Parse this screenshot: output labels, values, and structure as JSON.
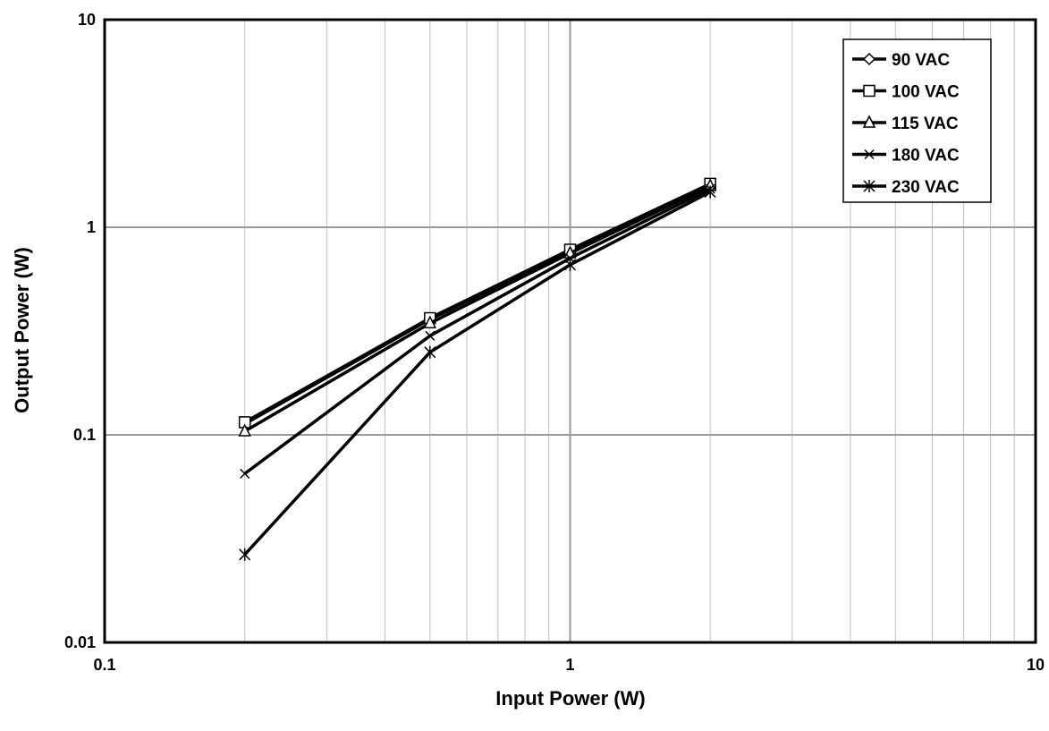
{
  "chart_data": {
    "type": "line",
    "title": "",
    "xlabel": "Input Power (W)",
    "ylabel": "Output Power (W)",
    "x_scale": "log",
    "y_scale": "log",
    "xlim": [
      0.1,
      10
    ],
    "ylim": [
      0.01,
      10
    ],
    "x_ticks": [
      "0.1",
      "1",
      "10"
    ],
    "y_ticks": [
      "0.01",
      "0.1",
      "1",
      "10"
    ],
    "grid": true,
    "legend_position": "top-right",
    "line_color": "#000000",
    "grid_color": "#c0c0c0",
    "series": [
      {
        "name": "90 VAC",
        "marker": "diamond",
        "x": [
          0.2,
          0.5,
          1.0,
          2.0
        ],
        "y": [
          0.113,
          0.36,
          0.77,
          1.6
        ]
      },
      {
        "name": "100 VAC",
        "marker": "square",
        "x": [
          0.2,
          0.5,
          1.0,
          2.0
        ],
        "y": [
          0.115,
          0.365,
          0.78,
          1.62
        ]
      },
      {
        "name": "115 VAC",
        "marker": "triangle",
        "x": [
          0.2,
          0.5,
          1.0,
          2.0
        ],
        "y": [
          0.104,
          0.345,
          0.75,
          1.58
        ]
      },
      {
        "name": "180 VAC",
        "marker": "x",
        "x": [
          0.2,
          0.5,
          1.0,
          2.0
        ],
        "y": [
          0.065,
          0.3,
          0.71,
          1.53
        ]
      },
      {
        "name": "230 VAC",
        "marker": "star",
        "x": [
          0.2,
          0.5,
          1.0,
          2.0
        ],
        "y": [
          0.0265,
          0.25,
          0.66,
          1.48
        ]
      }
    ]
  }
}
